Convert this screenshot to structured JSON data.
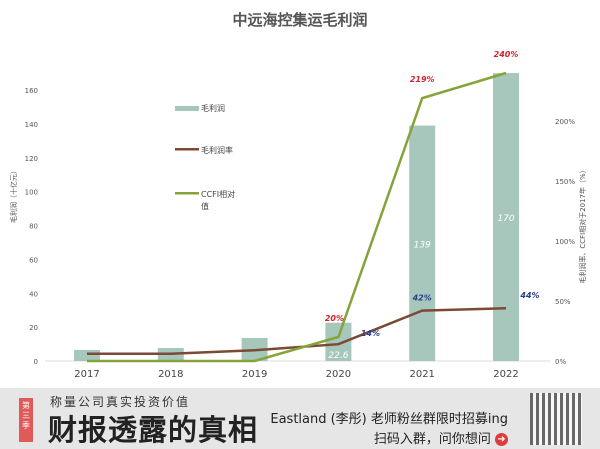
{
  "chart_data": {
    "type": "bar+line",
    "title": "中远海控集运毛利润",
    "categories": [
      "2017",
      "2018",
      "2019",
      "2020",
      "2021",
      "2022"
    ],
    "ylabel_left": "毛利润（十亿元）",
    "ylabel_right": "毛利润率、CCFI相对于2017年（%）",
    "ylim_left": [
      0,
      160
    ],
    "yticks_left": [
      "0",
      "20",
      "40",
      "60",
      "80",
      "100",
      "120",
      "140",
      "160"
    ],
    "ylim_right": [
      0,
      200
    ],
    "yticks_right": [
      "0%",
      "50%",
      "100%",
      "150%",
      "200%"
    ],
    "grid": false,
    "legend_placement": "top-left inside",
    "series": [
      {
        "name": "毛利润",
        "type": "bar",
        "axis": "left",
        "color": "#a7c7bd",
        "values": [
          6.5,
          7.7,
          13.6,
          22.6,
          139,
          170
        ],
        "labels": [
          "",
          "",
          "",
          "22.6",
          "139",
          "170"
        ]
      },
      {
        "name": "毛利润率",
        "type": "line",
        "axis": "right",
        "color": "#7a4a35",
        "values": [
          6,
          6,
          9,
          14,
          42,
          44
        ],
        "labels": [
          "",
          "",
          "",
          "14%",
          "42%",
          "44%"
        ],
        "label_color": "#2a3f8a"
      },
      {
        "name": "CCFI相对值",
        "type": "line",
        "axis": "right",
        "color": "#86a33a",
        "values": [
          0,
          0,
          0,
          20,
          219,
          240
        ],
        "labels": [
          "",
          "",
          "",
          "20%",
          "219%",
          "240%"
        ],
        "label_color": "#d0242a"
      }
    ]
  },
  "footer": {
    "ribbon": "第三季",
    "subtitle": "称量公司真实投资价值",
    "title": "财报透露的真相",
    "promo": "Eastland (李彤) 老师粉丝群限时招募ing",
    "scan": "扫码入群，问你想问",
    "arrow_icon": "arrow-right-circle-icon"
  }
}
